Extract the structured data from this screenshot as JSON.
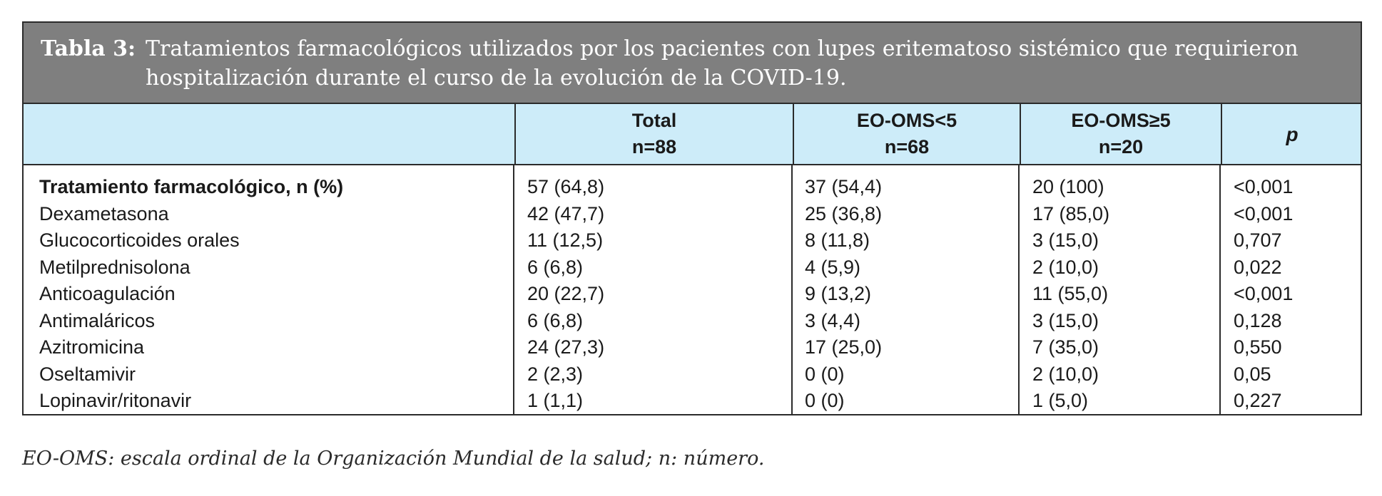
{
  "table": {
    "caption_label": "Tabla 3:",
    "caption_text": "Tratamientos farmacológicos utilizados por los pacientes con lupes eritematoso sistémico que requirieron hospitalización durante el curso de la evolución de la COVID-19.",
    "header_bg_color": "#cdecf9",
    "caption_bg_color": "#7f7f7f",
    "columns": [
      {
        "label": "Total",
        "sub": "n=88"
      },
      {
        "label": "EO-OMS<5",
        "sub": "n=68"
      },
      {
        "label": "EO-OMS≥5",
        "sub": "n=20"
      },
      {
        "label": "p",
        "sub": ""
      }
    ],
    "rows": [
      {
        "label": "Tratamiento farmacológico, n (%)",
        "total": "57 (64,8)",
        "low": "37 (54,4)",
        "high": "20 (100)",
        "p": "<0,001"
      },
      {
        "label": "Dexametasona",
        "total": "42 (47,7)",
        "low": "25 (36,8)",
        "high": "17 (85,0)",
        "p": "<0,001"
      },
      {
        "label": "Glucocorticoides orales",
        "total": "11 (12,5)",
        "low": "8 (11,8)",
        "high": "3 (15,0)",
        "p": "0,707"
      },
      {
        "label": "Metilprednisolona",
        "total": "6 (6,8)",
        "low": "4 (5,9)",
        "high": "2 (10,0)",
        "p": "0,022"
      },
      {
        "label": "Anticoagulación",
        "total": "20 (22,7)",
        "low": "9 (13,2)",
        "high": "11 (55,0)",
        "p": "<0,001"
      },
      {
        "label": "Antimaláricos",
        "total": "6 (6,8)",
        "low": "3 (4,4)",
        "high": "3 (15,0)",
        "p": "0,128"
      },
      {
        "label": "Azitromicina",
        "total": "24 (27,3)",
        "low": "17 (25,0)",
        "high": "7 (35,0)",
        "p": "0,550"
      },
      {
        "label": "Oseltamivir",
        "total": "2 (2,3)",
        "low": "0 (0)",
        "high": "2 (10,0)",
        "p": "0,05"
      },
      {
        "label": "Lopinavir/ritonavir",
        "total": "1 (1,1)",
        "low": "0 (0)",
        "high": "1 (5,0)",
        "p": "0,227"
      }
    ]
  },
  "footnote": "EO-OMS: escala ordinal de la Organización Mundial de la salud; n: número."
}
